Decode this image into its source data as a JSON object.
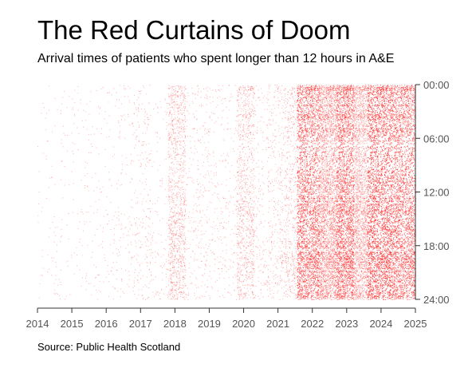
{
  "chart_data": {
    "type": "scatter",
    "title": "The Red Curtains of Doom",
    "subtitle": "Arrival times of patients who spent longer than 12 hours in A&E",
    "source": "Source: Public Health Scotland",
    "xlabel": "",
    "ylabel": "",
    "x_ticks": [
      "2014",
      "2015",
      "2016",
      "2017",
      "2018",
      "2019",
      "2020",
      "2021",
      "2022",
      "2023",
      "2024",
      "2025"
    ],
    "y_ticks": [
      "00:00",
      "06:00",
      "12:00",
      "18:00",
      "24:00"
    ],
    "xlim": [
      2014,
      2025
    ],
    "ylim": [
      0,
      24
    ],
    "y_axis_position": "right",
    "y_inverted": true,
    "grid": false,
    "point_color": "#ff2222",
    "density_by_period": [
      {
        "start": 2014.0,
        "end": 2015.0,
        "density": 0.3
      },
      {
        "start": 2015.0,
        "end": 2016.0,
        "density": 0.4
      },
      {
        "start": 2016.0,
        "end": 2016.8,
        "density": 0.6
      },
      {
        "start": 2016.8,
        "end": 2017.3,
        "density": 1.2
      },
      {
        "start": 2017.3,
        "end": 2017.8,
        "density": 0.6
      },
      {
        "start": 2017.8,
        "end": 2018.3,
        "density": 6.0
      },
      {
        "start": 2018.3,
        "end": 2019.8,
        "density": 1.0
      },
      {
        "start": 2019.8,
        "end": 2020.3,
        "density": 5.0
      },
      {
        "start": 2020.3,
        "end": 2020.7,
        "density": 1.2
      },
      {
        "start": 2020.7,
        "end": 2021.2,
        "density": 2.0
      },
      {
        "start": 2021.2,
        "end": 2021.55,
        "density": 3.5
      },
      {
        "start": 2021.55,
        "end": 2022.2,
        "density": 26
      },
      {
        "start": 2022.2,
        "end": 2022.7,
        "density": 18
      },
      {
        "start": 2022.7,
        "end": 2023.2,
        "density": 30
      },
      {
        "start": 2023.2,
        "end": 2023.6,
        "density": 14
      },
      {
        "start": 2023.6,
        "end": 2024.3,
        "density": 30
      },
      {
        "start": 2024.3,
        "end": 2025.0,
        "density": 24
      }
    ]
  }
}
